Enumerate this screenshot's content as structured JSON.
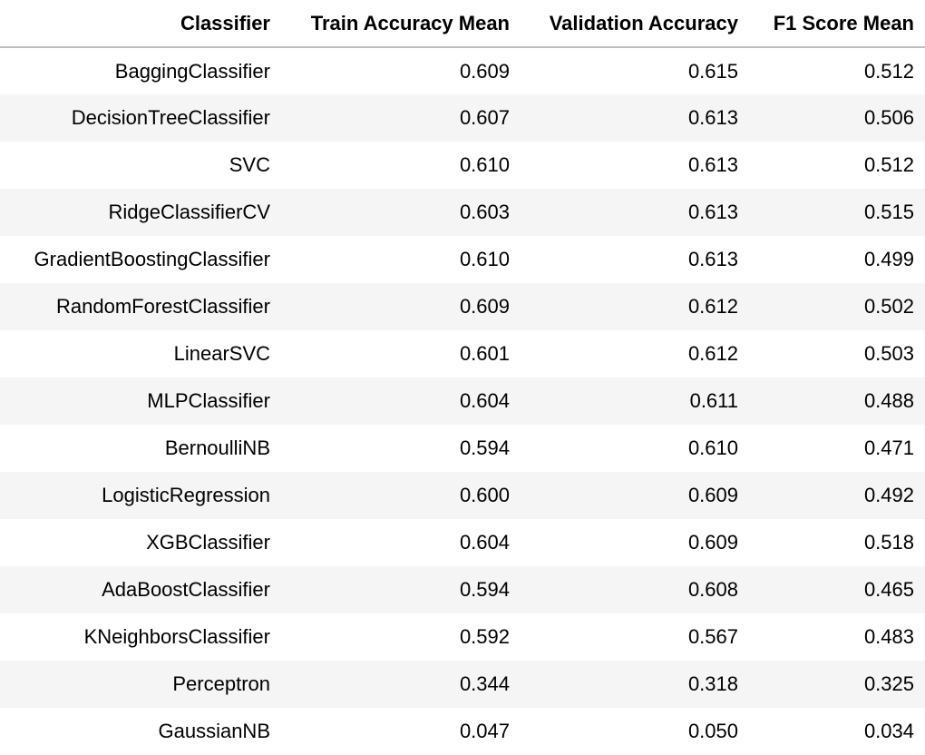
{
  "table": {
    "columns": [
      "Classifier",
      "Train Accuracy Mean",
      "Validation Accuracy",
      "F1 Score Mean"
    ],
    "rows": [
      [
        "BaggingClassifier",
        "0.609",
        "0.615",
        "0.512"
      ],
      [
        "DecisionTreeClassifier",
        "0.607",
        "0.613",
        "0.506"
      ],
      [
        "SVC",
        "0.610",
        "0.613",
        "0.512"
      ],
      [
        "RidgeClassifierCV",
        "0.603",
        "0.613",
        "0.515"
      ],
      [
        "GradientBoostingClassifier",
        "0.610",
        "0.613",
        "0.499"
      ],
      [
        "RandomForestClassifier",
        "0.609",
        "0.612",
        "0.502"
      ],
      [
        "LinearSVC",
        "0.601",
        "0.612",
        "0.503"
      ],
      [
        "MLPClassifier",
        "0.604",
        "0.611",
        "0.488"
      ],
      [
        "BernoulliNB",
        "0.594",
        "0.610",
        "0.471"
      ],
      [
        "LogisticRegression",
        "0.600",
        "0.609",
        "0.492"
      ],
      [
        "XGBClassifier",
        "0.604",
        "0.609",
        "0.518"
      ],
      [
        "AdaBoostClassifier",
        "0.594",
        "0.608",
        "0.465"
      ],
      [
        "KNeighborsClassifier",
        "0.592",
        "0.567",
        "0.483"
      ],
      [
        "Perceptron",
        "0.344",
        "0.318",
        "0.325"
      ],
      [
        "GaussianNB",
        "0.047",
        "0.050",
        "0.034"
      ]
    ]
  },
  "colors": {
    "stripe": "#f5f5f5",
    "header_rule": "#bdbdbd"
  }
}
